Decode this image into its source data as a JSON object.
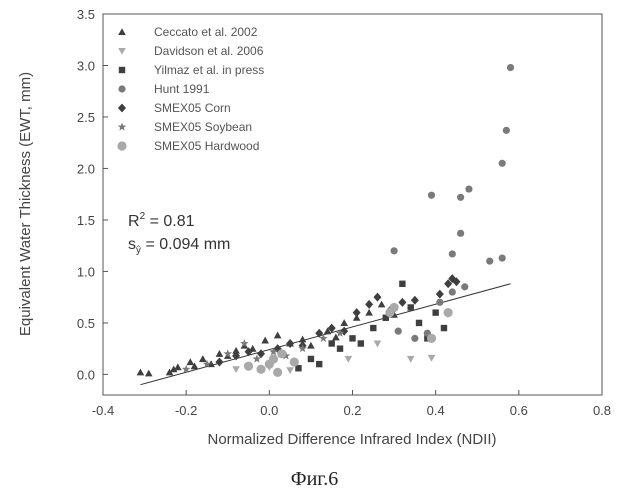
{
  "caption": "Фиг.6",
  "chart_data": {
    "type": "scatter",
    "title": "",
    "xlabel": "Normalized Difference Infrared Index (NDII)",
    "ylabel": "Equivalent Water Thickness (EWT, mm)",
    "xlim": [
      -0.4,
      0.8
    ],
    "ylim": [
      -0.2,
      3.5
    ],
    "xticks": [
      "-0.4",
      "-0.2",
      "0.0",
      "0.2",
      "0.4",
      "0.6",
      "0.8"
    ],
    "yticks": [
      "0.0",
      "0.5",
      "1.0",
      "1.5",
      "2.0",
      "2.5",
      "3.0",
      "3.5"
    ],
    "grid": false,
    "legend_position": "top-left",
    "annotation": {
      "r2_prefix": "R",
      "r2_sup": "2",
      "r2_value": " = 0.81",
      "s_prefix": "s",
      "s_sub": "ŷ",
      "s_value": " = 0.094 mm"
    },
    "trendline": {
      "x": [
        -0.31,
        0.58
      ],
      "y": [
        -0.1,
        0.88
      ]
    },
    "colors": {
      "dark": "#3f3f3f",
      "medium": "#7a7a7a",
      "light": "#a9a9a9"
    },
    "series": [
      {
        "name": "Ceccato et al. 2002",
        "marker": "triangle-up",
        "color": "#3f3f3f",
        "points": [
          [
            -0.31,
            0.02
          ],
          [
            -0.29,
            0.01
          ],
          [
            -0.24,
            0.02
          ],
          [
            -0.23,
            0.05
          ],
          [
            -0.22,
            0.07
          ],
          [
            -0.19,
            0.12
          ],
          [
            -0.18,
            0.08
          ],
          [
            -0.16,
            0.15
          ],
          [
            -0.14,
            0.1
          ],
          [
            -0.12,
            0.2
          ],
          [
            -0.1,
            0.18
          ],
          [
            -0.08,
            0.23
          ],
          [
            -0.06,
            0.28
          ],
          [
            -0.04,
            0.25
          ],
          [
            -0.01,
            0.33
          ],
          [
            0.02,
            0.38
          ],
          [
            0.05,
            0.3
          ],
          [
            0.08,
            0.34
          ],
          [
            0.1,
            0.28
          ],
          [
            0.14,
            0.42
          ],
          [
            0.16,
            0.36
          ],
          [
            0.18,
            0.5
          ],
          [
            0.21,
            0.55
          ],
          [
            0.24,
            0.6
          ],
          [
            0.27,
            0.68
          ],
          [
            0.3,
            0.58
          ]
        ]
      },
      {
        "name": "Davidson et al. 2006",
        "marker": "triangle-down",
        "color": "#a9a9a9",
        "points": [
          [
            -0.08,
            0.05
          ],
          [
            0.0,
            0.07
          ],
          [
            0.05,
            0.04
          ],
          [
            0.19,
            0.15
          ],
          [
            0.26,
            0.3
          ],
          [
            0.34,
            0.15
          ],
          [
            0.39,
            0.16
          ]
        ]
      },
      {
        "name": "Yilmaz et al. in press",
        "marker": "square",
        "color": "#3f3f3f",
        "points": [
          [
            0.07,
            0.06
          ],
          [
            0.1,
            0.15
          ],
          [
            0.12,
            0.1
          ],
          [
            0.15,
            0.3
          ],
          [
            0.17,
            0.25
          ],
          [
            0.2,
            0.35
          ],
          [
            0.22,
            0.3
          ],
          [
            0.25,
            0.45
          ],
          [
            0.28,
            0.55
          ],
          [
            0.32,
            0.88
          ],
          [
            0.34,
            0.65
          ],
          [
            0.36,
            0.5
          ],
          [
            0.38,
            0.35
          ],
          [
            0.4,
            0.6
          ],
          [
            0.42,
            0.45
          ]
        ]
      },
      {
        "name": "Hunt 1991",
        "marker": "circle",
        "color": "#7a7a7a",
        "points": [
          [
            0.3,
            1.2
          ],
          [
            0.39,
            1.74
          ],
          [
            0.44,
            1.17
          ],
          [
            0.46,
            1.37
          ],
          [
            0.46,
            1.72
          ],
          [
            0.48,
            1.8
          ],
          [
            0.53,
            1.1
          ],
          [
            0.56,
            1.13
          ],
          [
            0.56,
            2.05
          ],
          [
            0.57,
            2.37
          ],
          [
            0.58,
            2.98
          ],
          [
            0.31,
            0.42
          ],
          [
            0.35,
            0.35
          ],
          [
            0.38,
            0.4
          ],
          [
            0.41,
            0.7
          ],
          [
            0.44,
            0.8
          ],
          [
            0.47,
            0.85
          ]
        ]
      },
      {
        "name": "SMEX05 Corn",
        "marker": "diamond",
        "color": "#3f3f3f",
        "points": [
          [
            -0.12,
            0.12
          ],
          [
            -0.08,
            0.18
          ],
          [
            -0.05,
            0.22
          ],
          [
            -0.02,
            0.2
          ],
          [
            0.02,
            0.25
          ],
          [
            0.05,
            0.3
          ],
          [
            0.08,
            0.28
          ],
          [
            0.12,
            0.4
          ],
          [
            0.15,
            0.45
          ],
          [
            0.18,
            0.42
          ],
          [
            0.21,
            0.6
          ],
          [
            0.24,
            0.68
          ],
          [
            0.26,
            0.75
          ],
          [
            0.29,
            0.62
          ],
          [
            0.32,
            0.7
          ],
          [
            0.35,
            0.72
          ],
          [
            0.41,
            0.78
          ],
          [
            0.43,
            0.88
          ],
          [
            0.44,
            0.93
          ],
          [
            0.45,
            0.9
          ]
        ]
      },
      {
        "name": "SMEX05 Soybean",
        "marker": "star",
        "color": "#7a7a7a",
        "points": [
          [
            -0.2,
            0.05
          ],
          [
            -0.15,
            0.1
          ],
          [
            -0.1,
            0.2
          ],
          [
            -0.06,
            0.3
          ],
          [
            -0.03,
            0.15
          ],
          [
            0.01,
            0.22
          ],
          [
            0.04,
            0.18
          ],
          [
            0.08,
            0.25
          ],
          [
            0.13,
            0.35
          ],
          [
            0.17,
            0.4
          ]
        ]
      },
      {
        "name": "SMEX05 Hardwood",
        "marker": "circle-large",
        "color": "#a9a9a9",
        "points": [
          [
            -0.05,
            0.08
          ],
          [
            -0.02,
            0.05
          ],
          [
            0.0,
            0.1
          ],
          [
            0.01,
            0.15
          ],
          [
            0.02,
            0.02
          ],
          [
            0.03,
            0.2
          ],
          [
            0.06,
            0.12
          ],
          [
            0.29,
            0.6
          ],
          [
            0.3,
            0.65
          ],
          [
            0.39,
            0.35
          ],
          [
            0.43,
            0.6
          ]
        ]
      }
    ]
  }
}
